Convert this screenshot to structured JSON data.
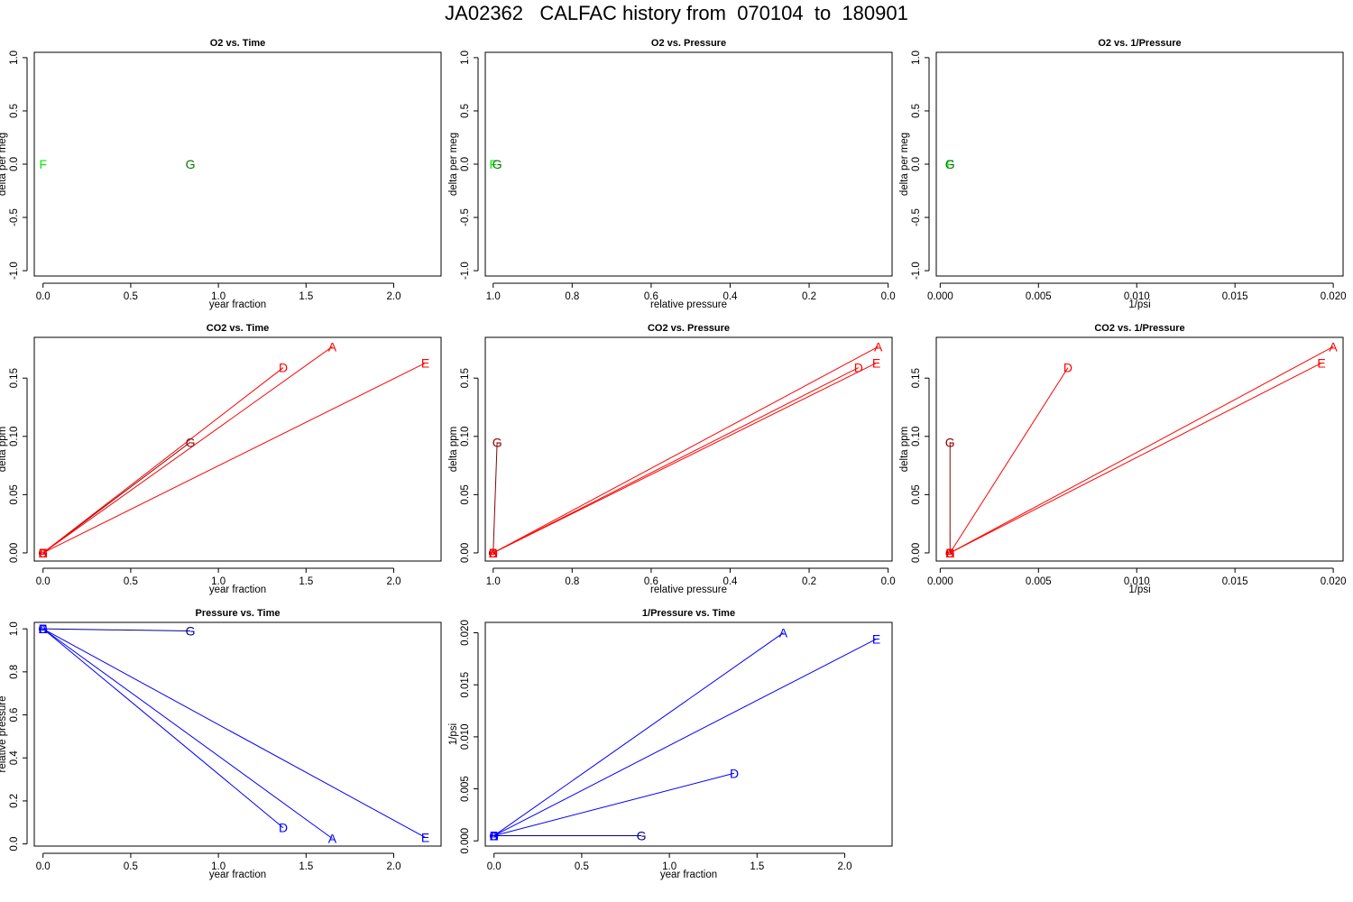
{
  "title": "JA02362   CALFAC history from  070104  to  180901",
  "colors": {
    "O2_F": "#00ee00",
    "O2_G": "#007700",
    "CO2": "#ff0000",
    "CO2_G": "#8b0000",
    "P": "#0000ff",
    "P_dark": "#00008b"
  },
  "chart_data": [
    {
      "id": "o2_time",
      "type": "scatter",
      "title": "O2 vs. Time",
      "xlabel": "year fraction",
      "ylabel": "delta per meg",
      "xlim": [
        -0.05,
        2.27
      ],
      "ylim": [
        -1.05,
        1.05
      ],
      "x_reversed": false,
      "xticks": [
        0.0,
        0.5,
        1.0,
        1.5,
        2.0
      ],
      "xtick_labels": [
        "0.0",
        "0.5",
        "1.0",
        "1.5",
        "2.0"
      ],
      "yticks": [
        -1.0,
        -0.5,
        0.0,
        0.5,
        1.0
      ],
      "ytick_labels": [
        "-1.0",
        "-0.5",
        "0.0",
        "0.5",
        "1.0"
      ],
      "points": [
        {
          "label": "F",
          "x": 0.0,
          "y": 0.0,
          "color": "O2_F"
        },
        {
          "label": "G",
          "x": 0.84,
          "y": 0.0,
          "color": "O2_G"
        }
      ],
      "segments": []
    },
    {
      "id": "o2_pressure",
      "type": "scatter",
      "title": "O2 vs. Pressure",
      "xlabel": "relative pressure",
      "ylabel": "delta per meg",
      "xlim": [
        1.02,
        -0.01
      ],
      "ylim": [
        -1.05,
        1.05
      ],
      "x_reversed": true,
      "xticks": [
        1.0,
        0.8,
        0.6,
        0.4,
        0.2,
        0.0
      ],
      "xtick_labels": [
        "1.0",
        "0.8",
        "0.6",
        "0.4",
        "0.2",
        "0.0"
      ],
      "yticks": [
        -1.0,
        -0.5,
        0.0,
        0.5,
        1.0
      ],
      "ytick_labels": [
        "-1.0",
        "-0.5",
        "0.0",
        "0.5",
        "1.0"
      ],
      "points": [
        {
          "label": "F",
          "x": 1.0,
          "y": 0.0,
          "color": "O2_F"
        },
        {
          "label": "G",
          "x": 0.99,
          "y": 0.0,
          "color": "O2_G"
        }
      ],
      "segments": []
    },
    {
      "id": "o2_invpressure",
      "type": "scatter",
      "title": "O2 vs. 1/Pressure",
      "xlabel": "1/psi",
      "ylabel": "delta per meg",
      "xlim": [
        -0.0002,
        0.0205
      ],
      "ylim": [
        -1.05,
        1.05
      ],
      "x_reversed": false,
      "xticks": [
        0.0,
        0.005,
        0.01,
        0.015,
        0.02
      ],
      "xtick_labels": [
        "0.000",
        "0.005",
        "0.010",
        "0.015",
        "0.020"
      ],
      "yticks": [
        -1.0,
        -0.5,
        0.0,
        0.5,
        1.0
      ],
      "ytick_labels": [
        "-1.0",
        "-0.5",
        "0.0",
        "0.5",
        "1.0"
      ],
      "points": [
        {
          "label": "F",
          "x": 0.0005,
          "y": 0.0,
          "color": "O2_F"
        },
        {
          "label": "G",
          "x": 0.0005,
          "y": 0.0,
          "color": "O2_G"
        }
      ],
      "segments": []
    },
    {
      "id": "co2_time",
      "type": "line",
      "title": "CO2 vs. Time",
      "xlabel": "year fraction",
      "ylabel": "delta ppm",
      "xlim": [
        -0.05,
        2.27
      ],
      "ylim": [
        -0.007,
        0.185
      ],
      "x_reversed": false,
      "xticks": [
        0.0,
        0.5,
        1.0,
        1.5,
        2.0
      ],
      "xtick_labels": [
        "0.0",
        "0.5",
        "1.0",
        "1.5",
        "2.0"
      ],
      "yticks": [
        0.0,
        0.05,
        0.1,
        0.15
      ],
      "ytick_labels": [
        "0.00",
        "0.05",
        "0.10",
        "0.15"
      ],
      "points": [
        {
          "label": "G",
          "x": 0.0,
          "y": 0.0,
          "color": "CO2_G"
        },
        {
          "label": "D",
          "x": 0.0,
          "y": 0.0,
          "color": "CO2"
        },
        {
          "label": "A",
          "x": 0.0,
          "y": 0.0,
          "color": "CO2"
        },
        {
          "label": "E",
          "x": 0.0,
          "y": 0.0,
          "color": "CO2"
        },
        {
          "label": "G",
          "x": 0.84,
          "y": 0.095,
          "color": "CO2_G"
        },
        {
          "label": "D",
          "x": 1.37,
          "y": 0.159,
          "color": "CO2"
        },
        {
          "label": "A",
          "x": 1.65,
          "y": 0.177,
          "color": "CO2"
        },
        {
          "label": "E",
          "x": 2.18,
          "y": 0.163,
          "color": "CO2"
        }
      ],
      "segments": [
        {
          "x1": 0,
          "y1": 0,
          "x2": 0.84,
          "y2": 0.095,
          "color": "CO2_G"
        },
        {
          "x1": 0,
          "y1": 0,
          "x2": 1.37,
          "y2": 0.159,
          "color": "CO2"
        },
        {
          "x1": 0,
          "y1": 0,
          "x2": 1.65,
          "y2": 0.177,
          "color": "CO2"
        },
        {
          "x1": 0,
          "y1": 0,
          "x2": 2.18,
          "y2": 0.163,
          "color": "CO2"
        }
      ]
    },
    {
      "id": "co2_pressure",
      "type": "line",
      "title": "CO2 vs. Pressure",
      "xlabel": "relative pressure",
      "ylabel": "delta ppm",
      "xlim": [
        1.02,
        -0.01
      ],
      "ylim": [
        -0.007,
        0.185
      ],
      "x_reversed": true,
      "xticks": [
        1.0,
        0.8,
        0.6,
        0.4,
        0.2,
        0.0
      ],
      "xtick_labels": [
        "1.0",
        "0.8",
        "0.6",
        "0.4",
        "0.2",
        "0.0"
      ],
      "yticks": [
        0.0,
        0.05,
        0.1,
        0.15
      ],
      "ytick_labels": [
        "0.00",
        "0.05",
        "0.10",
        "0.15"
      ],
      "points": [
        {
          "label": "G",
          "x": 1.0,
          "y": 0.0,
          "color": "CO2_G"
        },
        {
          "label": "D",
          "x": 1.0,
          "y": 0.0,
          "color": "CO2"
        },
        {
          "label": "A",
          "x": 1.0,
          "y": 0.0,
          "color": "CO2"
        },
        {
          "label": "E",
          "x": 1.0,
          "y": 0.0,
          "color": "CO2"
        },
        {
          "label": "G",
          "x": 0.99,
          "y": 0.095,
          "color": "CO2_G"
        },
        {
          "label": "D",
          "x": 0.075,
          "y": 0.159,
          "color": "CO2"
        },
        {
          "label": "A",
          "x": 0.025,
          "y": 0.177,
          "color": "CO2"
        },
        {
          "label": "E",
          "x": 0.03,
          "y": 0.163,
          "color": "CO2"
        }
      ],
      "segments": [
        {
          "x1": 1.0,
          "y1": 0,
          "x2": 0.99,
          "y2": 0.095,
          "color": "CO2_G"
        },
        {
          "x1": 1.0,
          "y1": 0,
          "x2": 0.075,
          "y2": 0.159,
          "color": "CO2"
        },
        {
          "x1": 1.0,
          "y1": 0,
          "x2": 0.025,
          "y2": 0.177,
          "color": "CO2"
        },
        {
          "x1": 1.0,
          "y1": 0,
          "x2": 0.03,
          "y2": 0.163,
          "color": "CO2"
        }
      ]
    },
    {
      "id": "co2_invpressure",
      "type": "line",
      "title": "CO2 vs. 1/Pressure",
      "xlabel": "1/psi",
      "ylabel": "delta ppm",
      "xlim": [
        -0.0002,
        0.0205
      ],
      "ylim": [
        -0.007,
        0.185
      ],
      "x_reversed": false,
      "xticks": [
        0.0,
        0.005,
        0.01,
        0.015,
        0.02
      ],
      "xtick_labels": [
        "0.000",
        "0.005",
        "0.010",
        "0.015",
        "0.020"
      ],
      "yticks": [
        0.0,
        0.05,
        0.1,
        0.15
      ],
      "ytick_labels": [
        "0.00",
        "0.05",
        "0.10",
        "0.15"
      ],
      "points": [
        {
          "label": "G",
          "x": 0.0005,
          "y": 0.0,
          "color": "CO2_G"
        },
        {
          "label": "D",
          "x": 0.0005,
          "y": 0.0,
          "color": "CO2"
        },
        {
          "label": "A",
          "x": 0.0005,
          "y": 0.0,
          "color": "CO2"
        },
        {
          "label": "E",
          "x": 0.0005,
          "y": 0.0,
          "color": "CO2"
        },
        {
          "label": "G",
          "x": 0.0005,
          "y": 0.095,
          "color": "CO2_G"
        },
        {
          "label": "D",
          "x": 0.0065,
          "y": 0.159,
          "color": "CO2"
        },
        {
          "label": "A",
          "x": 0.02,
          "y": 0.177,
          "color": "CO2"
        },
        {
          "label": "E",
          "x": 0.0194,
          "y": 0.163,
          "color": "CO2"
        }
      ],
      "segments": [
        {
          "x1": 0.0005,
          "y1": 0,
          "x2": 0.0005,
          "y2": 0.095,
          "color": "CO2_G"
        },
        {
          "x1": 0.0005,
          "y1": 0,
          "x2": 0.0065,
          "y2": 0.159,
          "color": "CO2"
        },
        {
          "x1": 0.0005,
          "y1": 0,
          "x2": 0.02,
          "y2": 0.177,
          "color": "CO2"
        },
        {
          "x1": 0.0005,
          "y1": 0,
          "x2": 0.0194,
          "y2": 0.163,
          "color": "CO2"
        }
      ]
    },
    {
      "id": "pressure_time",
      "type": "line",
      "title": "Pressure vs. Time",
      "xlabel": "year fraction",
      "ylabel": "relative pressure",
      "xlim": [
        -0.05,
        2.27
      ],
      "ylim": [
        -0.01,
        1.03
      ],
      "x_reversed": false,
      "xticks": [
        0.0,
        0.5,
        1.0,
        1.5,
        2.0
      ],
      "xtick_labels": [
        "0.0",
        "0.5",
        "1.0",
        "1.5",
        "2.0"
      ],
      "yticks": [
        0.0,
        0.2,
        0.4,
        0.6,
        0.8,
        1.0
      ],
      "ytick_labels": [
        "0.0",
        "0.2",
        "0.4",
        "0.6",
        "0.8",
        "1.0"
      ],
      "points": [
        {
          "label": "G",
          "x": 0.0,
          "y": 1.0,
          "color": "P"
        },
        {
          "label": "D",
          "x": 0.0,
          "y": 1.0,
          "color": "P"
        },
        {
          "label": "A",
          "x": 0.0,
          "y": 1.0,
          "color": "P"
        },
        {
          "label": "E",
          "x": 0.0,
          "y": 1.0,
          "color": "P"
        },
        {
          "label": "G",
          "x": 0.84,
          "y": 0.99,
          "color": "P_dark"
        },
        {
          "label": "D",
          "x": 1.37,
          "y": 0.075,
          "color": "P"
        },
        {
          "label": "A",
          "x": 1.65,
          "y": 0.025,
          "color": "P"
        },
        {
          "label": "E",
          "x": 2.18,
          "y": 0.03,
          "color": "P"
        }
      ],
      "segments": [
        {
          "x1": 0,
          "y1": 1.0,
          "x2": 0.84,
          "y2": 0.99,
          "color": "P_dark"
        },
        {
          "x1": 0,
          "y1": 1.0,
          "x2": 1.37,
          "y2": 0.075,
          "color": "P"
        },
        {
          "x1": 0,
          "y1": 1.0,
          "x2": 1.65,
          "y2": 0.025,
          "color": "P"
        },
        {
          "x1": 0,
          "y1": 1.0,
          "x2": 2.18,
          "y2": 0.03,
          "color": "P"
        }
      ]
    },
    {
      "id": "invpressure_time",
      "type": "line",
      "title": "1/Pressure vs. Time",
      "xlabel": "year fraction",
      "ylabel": "1/psi",
      "xlim": [
        -0.05,
        2.27
      ],
      "ylim": [
        -0.0005,
        0.021
      ],
      "x_reversed": false,
      "xticks": [
        0.0,
        0.5,
        1.0,
        1.5,
        2.0
      ],
      "xtick_labels": [
        "0.0",
        "0.5",
        "1.0",
        "1.5",
        "2.0"
      ],
      "yticks": [
        0.0,
        0.005,
        0.01,
        0.015,
        0.02
      ],
      "ytick_labels": [
        "0.000",
        "0.005",
        "0.010",
        "0.015",
        "0.020"
      ],
      "points": [
        {
          "label": "G",
          "x": 0.0,
          "y": 0.0005,
          "color": "P"
        },
        {
          "label": "D",
          "x": 0.0,
          "y": 0.0005,
          "color": "P"
        },
        {
          "label": "A",
          "x": 0.0,
          "y": 0.0005,
          "color": "P"
        },
        {
          "label": "E",
          "x": 0.0,
          "y": 0.0005,
          "color": "P"
        },
        {
          "label": "G",
          "x": 0.84,
          "y": 0.0005,
          "color": "P_dark"
        },
        {
          "label": "D",
          "x": 1.37,
          "y": 0.0065,
          "color": "P"
        },
        {
          "label": "A",
          "x": 1.65,
          "y": 0.02,
          "color": "P"
        },
        {
          "label": "E",
          "x": 2.18,
          "y": 0.0194,
          "color": "P"
        }
      ],
      "segments": [
        {
          "x1": 0,
          "y1": 0.0005,
          "x2": 0.84,
          "y2": 0.0005,
          "color": "P_dark"
        },
        {
          "x1": 0,
          "y1": 0.0005,
          "x2": 1.37,
          "y2": 0.0065,
          "color": "P"
        },
        {
          "x1": 0,
          "y1": 0.0005,
          "x2": 1.65,
          "y2": 0.02,
          "color": "P"
        },
        {
          "x1": 0,
          "y1": 0.0005,
          "x2": 2.18,
          "y2": 0.0194,
          "color": "P"
        }
      ]
    }
  ]
}
